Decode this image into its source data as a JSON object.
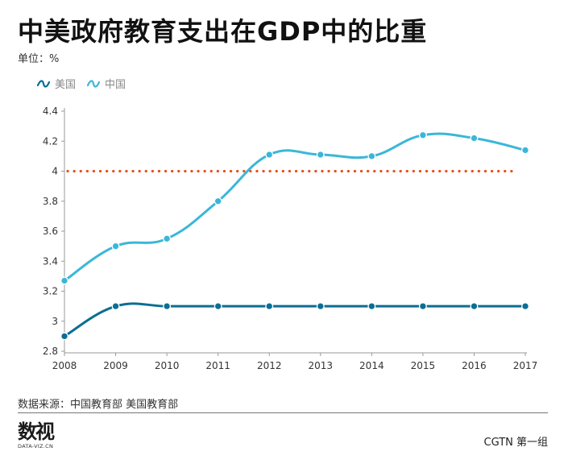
{
  "title": "中美政府教育支出在GDP中的比重",
  "unit_label": "单位：%",
  "legend": [
    {
      "label": "美国",
      "color": "#0b6e93"
    },
    {
      "label": "中国",
      "color": "#3ab7d8"
    }
  ],
  "source": "数据来源：中国教育部 美国教育部",
  "logo_text": "数视",
  "logo_sub": "DATA-VIZ.CN",
  "credit": "CGTN 第一组",
  "chart_data": {
    "type": "line",
    "x": [
      2008,
      2009,
      2010,
      2011,
      2012,
      2013,
      2014,
      2015,
      2016,
      2017
    ],
    "series": [
      {
        "name": "美国",
        "color": "#0b6e93",
        "values": [
          2.9,
          3.1,
          3.1,
          3.1,
          3.1,
          3.1,
          3.1,
          3.1,
          3.1,
          3.1
        ]
      },
      {
        "name": "中国",
        "color": "#3ab7d8",
        "values": [
          3.27,
          3.5,
          3.55,
          3.8,
          4.11,
          4.11,
          4.1,
          4.24,
          4.22,
          4.14
        ]
      }
    ],
    "reference_line": {
      "value": 4,
      "color": "#e8501e",
      "style": "dotted"
    },
    "ylim": [
      2.8,
      4.4
    ],
    "yticks": [
      2.8,
      3,
      3.2,
      3.4,
      3.6,
      3.8,
      4,
      4.2,
      4.4
    ],
    "xlabel": "",
    "ylabel": "",
    "grid": false,
    "legend_position": "top-left"
  }
}
